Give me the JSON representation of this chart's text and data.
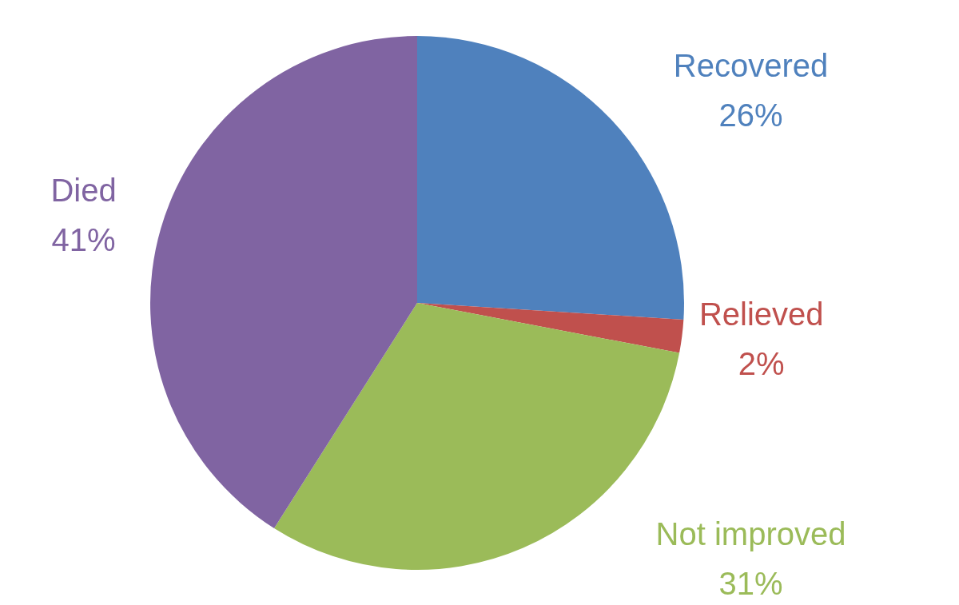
{
  "chart_data": {
    "type": "pie",
    "categories": [
      "Recovered",
      "Relieved",
      "Not improved",
      "Died"
    ],
    "values": [
      26,
      2,
      31,
      41
    ],
    "colors": [
      "#4f81bd",
      "#c0504d",
      "#9bbb59",
      "#8064a2"
    ],
    "value_labels": [
      "26%",
      "2%",
      "31%",
      "41%"
    ],
    "legend": false
  }
}
